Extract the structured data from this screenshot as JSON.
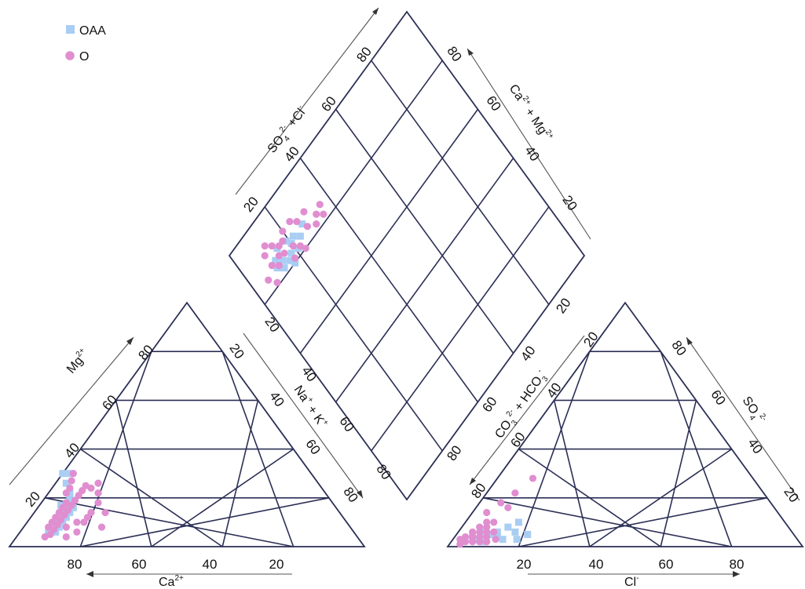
{
  "chart_data": {
    "type": "scatter",
    "chart_kind": "piper-diagram",
    "grid": true,
    "legend_position": "top-left",
    "legend": [
      {
        "name": "OAA",
        "marker": "square",
        "color": "#a9cdf3"
      },
      {
        "name": "O",
        "marker": "circle",
        "color": "#e08ed0"
      }
    ],
    "cation_triangle": {
      "axis_labels": {
        "bottom": "Ca",
        "left": "Mg",
        "right": "Na + K"
      },
      "ticks": {
        "bottom": [
          "80",
          "60",
          "40",
          "20"
        ],
        "left": [
          "20",
          "40",
          "60",
          "80"
        ],
        "right": [
          "20",
          "40",
          "60",
          "80"
        ]
      },
      "points_fields": [
        "Ca",
        "Mg",
        "NaK"
      ],
      "series": [
        {
          "name": "OAA",
          "points": [
            [
              86,
              6,
              8
            ],
            [
              84,
              8,
              8
            ],
            [
              82,
              10,
              8
            ],
            [
              80,
              12,
              8
            ],
            [
              78,
              14,
              8
            ],
            [
              76,
              16,
              8
            ],
            [
              74,
              18,
              8
            ],
            [
              73,
              20,
              7
            ],
            [
              72,
              22,
              6
            ],
            [
              71,
              26,
              3
            ],
            [
              80,
              10,
              10
            ],
            [
              78,
              12,
              10
            ],
            [
              76,
              14,
              10
            ],
            [
              74,
              16,
              10
            ],
            [
              84,
              6,
              10
            ],
            [
              70,
              30,
              0
            ],
            [
              68,
              30,
              2
            ],
            [
              82,
              8,
              10
            ],
            [
              79,
              13,
              8
            ],
            [
              77,
              17,
              6
            ]
          ]
        },
        {
          "name": "O",
          "points": [
            [
              88,
              4,
              8
            ],
            [
              86,
              5,
              9
            ],
            [
              84,
              7,
              9
            ],
            [
              82,
              9,
              9
            ],
            [
              80,
              11,
              9
            ],
            [
              78,
              13,
              9
            ],
            [
              76,
              15,
              9
            ],
            [
              74,
              17,
              9
            ],
            [
              72,
              19,
              9
            ],
            [
              70,
              21,
              9
            ],
            [
              68,
              23,
              9
            ],
            [
              66,
              25,
              9
            ],
            [
              80,
              8,
              12
            ],
            [
              76,
              10,
              14
            ],
            [
              72,
              12,
              16
            ],
            [
              70,
              14,
              16
            ],
            [
              66,
              18,
              16
            ],
            [
              64,
              22,
              14
            ],
            [
              62,
              26,
              12
            ],
            [
              85,
              8,
              7
            ],
            [
              83,
              10,
              7
            ],
            [
              81,
              12,
              7
            ],
            [
              79,
              14,
              7
            ],
            [
              77,
              16,
              7
            ],
            [
              75,
              18,
              7
            ],
            [
              73,
              22,
              5
            ],
            [
              71,
              24,
              5
            ],
            [
              69,
              27,
              4
            ],
            [
              67,
              30,
              3
            ],
            [
              65,
              24,
              11
            ],
            [
              74,
              10,
              16
            ],
            [
              78,
              6,
              16
            ],
            [
              82,
              4,
              14
            ],
            [
              66,
              14,
              20
            ],
            [
              70,
              8,
              22
            ]
          ]
        }
      ]
    },
    "anion_triangle": {
      "axis_labels": {
        "bottom": "Cl",
        "left": "CO3 + HCO3",
        "right": "SO4"
      },
      "ticks": {
        "bottom": [
          "20",
          "40",
          "60",
          "80"
        ],
        "left": [
          "20",
          "40",
          "60",
          "80"
        ],
        "right": [
          "20",
          "40",
          "60",
          "80"
        ]
      },
      "points_fields": [
        "Cl",
        "SO4",
        "CO3HCO3"
      ],
      "series": [
        {
          "name": "OAA",
          "points": [
            [
              12,
              4,
              84
            ],
            [
              14,
              3,
              83
            ],
            [
              10,
              5,
              85
            ],
            [
              8,
              4,
              88
            ],
            [
              6,
              3,
              91
            ],
            [
              16,
              6,
              78
            ],
            [
              18,
              3,
              79
            ],
            [
              13,
              8,
              79
            ],
            [
              11,
              6,
              83
            ],
            [
              9,
              2,
              89
            ],
            [
              20,
              5,
              75
            ],
            [
              15,
              10,
              75
            ],
            [
              7,
              6,
              87
            ],
            [
              5,
              4,
              91
            ]
          ]
        },
        {
          "name": "O",
          "points": [
            [
              4,
              2,
              94
            ],
            [
              6,
              2,
              92
            ],
            [
              8,
              2,
              90
            ],
            [
              10,
              2,
              88
            ],
            [
              3,
              4,
              93
            ],
            [
              5,
              4,
              91
            ],
            [
              7,
              4,
              89
            ],
            [
              9,
              4,
              87
            ],
            [
              4,
              6,
              90
            ],
            [
              6,
              6,
              88
            ],
            [
              8,
              6,
              86
            ],
            [
              5,
              8,
              87
            ],
            [
              7,
              8,
              85
            ],
            [
              6,
              10,
              84
            ],
            [
              8,
              10,
              82
            ],
            [
              10,
              6,
              84
            ],
            [
              12,
              3,
              85
            ],
            [
              3,
              1,
              96
            ],
            [
              2,
              3,
              95
            ],
            [
              6,
              18,
              76
            ],
            [
              8,
              22,
              70
            ],
            [
              10,
              28,
              62
            ],
            [
              4,
              14,
              82
            ],
            [
              9,
              16,
              75
            ]
          ]
        }
      ]
    },
    "diamond": {
      "axis_labels": {
        "upper_left": "SO4 + Cl",
        "upper_right": "Ca + Mg"
      },
      "ticks": {
        "upper_left": [
          "20",
          "40",
          "60",
          "80"
        ],
        "upper_right": [
          "80",
          "60",
          "40",
          "20"
        ],
        "lower_left": [
          "20",
          "40",
          "60",
          "80"
        ],
        "lower_right": [
          "20",
          "40",
          "60",
          "80"
        ]
      },
      "points_fields": [
        "SO4_Cl",
        "Ca_Mg"
      ],
      "series": [
        {
          "name": "OAA",
          "points": [
            [
              14,
              84
            ],
            [
              16,
              82
            ],
            [
              18,
              83
            ],
            [
              12,
              86
            ],
            [
              15,
              88
            ],
            [
              20,
              85
            ],
            [
              17,
              80
            ],
            [
              13,
              82
            ],
            [
              19,
              87
            ],
            [
              22,
              86
            ],
            [
              21,
              82
            ],
            [
              24,
              84
            ],
            [
              11,
              84
            ],
            [
              27,
              86
            ]
          ]
        },
        {
          "name": "O",
          "points": [
            [
              10,
              86
            ],
            [
              12,
              84
            ],
            [
              14,
              86
            ],
            [
              16,
              85
            ],
            [
              18,
              81
            ],
            [
              20,
              84
            ],
            [
              22,
              82
            ],
            [
              14,
              90
            ],
            [
              16,
              88
            ],
            [
              12,
              92
            ],
            [
              10,
              90
            ],
            [
              18,
              88
            ],
            [
              20,
              90
            ],
            [
              24,
              90
            ],
            [
              26,
              88
            ],
            [
              28,
              84
            ],
            [
              23,
              80
            ],
            [
              6,
              84
            ],
            [
              8,
              81
            ],
            [
              30,
              88
            ],
            [
              33,
              84
            ],
            [
              35,
              82
            ],
            [
              31,
              82
            ],
            [
              36,
              85
            ]
          ]
        }
      ]
    }
  },
  "labels": {
    "cation_bottom": {
      "main": "Ca",
      "sup": "2+"
    },
    "cation_left": {
      "main": "Mg",
      "sup": "2+"
    },
    "cation_right": {
      "a": "Na",
      "a_sup": "+",
      "plus": " + ",
      "b": "K",
      "b_sup": "+"
    },
    "anion_bottom": {
      "main": "Cl",
      "sup": "-"
    },
    "anion_right": {
      "main": "SO",
      "sub": "4",
      "sup": "2-"
    },
    "anion_left": {
      "a": "CO",
      "a_sub": "3",
      "a_sup": "2-",
      "plus": " + ",
      "b": "HCO",
      "b_sub": "3",
      "b_sup": "-"
    },
    "diamond_left": {
      "a": "SO",
      "a_sub": "4",
      "a_sup": "2-",
      "plus": " +",
      "b": "Cl",
      "b_sup": "-"
    },
    "diamond_right": {
      "a": "Ca",
      "a_sup": "2+",
      "plus": " + ",
      "b": "Mg",
      "b_sup": "2+"
    }
  },
  "legend": {
    "oaa_label": "OAA",
    "o_label": "O"
  }
}
